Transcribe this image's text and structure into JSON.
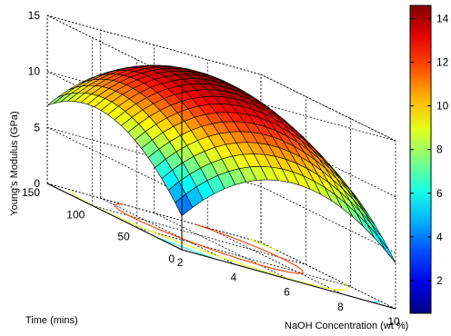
{
  "chart_data": {
    "type": "surface",
    "title": "",
    "xlabel": "NaOH Concentration (wt %)",
    "ylabel": "Time (mins)",
    "zlabel": "Young's Modulus (GPa)",
    "xlim": [
      2,
      10
    ],
    "ylim": [
      0,
      150
    ],
    "zlim": [
      0,
      15
    ],
    "x_ticks": [
      "2",
      "4",
      "6",
      "8",
      "10"
    ],
    "y_ticks": [
      "0",
      "50",
      "100",
      "150"
    ],
    "z_ticks": [
      "0",
      "5",
      "10",
      "15"
    ],
    "colorbar_ticks": [
      "2",
      "4",
      "6",
      "8",
      "10",
      "12",
      "14"
    ],
    "colorbar_range": [
      0.5,
      14.6
    ],
    "colormap": "jet",
    "grid": true,
    "has_contour_projection": true,
    "contour_levels": [
      2,
      6,
      9,
      12
    ],
    "surface_samples": [
      {
        "x": 2,
        "y": 0,
        "z": 0.5
      },
      {
        "x": 2,
        "y": 150,
        "z": 5.4
      },
      {
        "x": 10,
        "y": 0,
        "z": 5.5
      },
      {
        "x": 10,
        "y": 150,
        "z": 6.6
      },
      {
        "x": 6,
        "y": 90,
        "z": 14.5
      },
      {
        "x": 6,
        "y": 0,
        "z": 8.0
      },
      {
        "x": 2,
        "y": 90,
        "z": 7.0
      }
    ]
  }
}
